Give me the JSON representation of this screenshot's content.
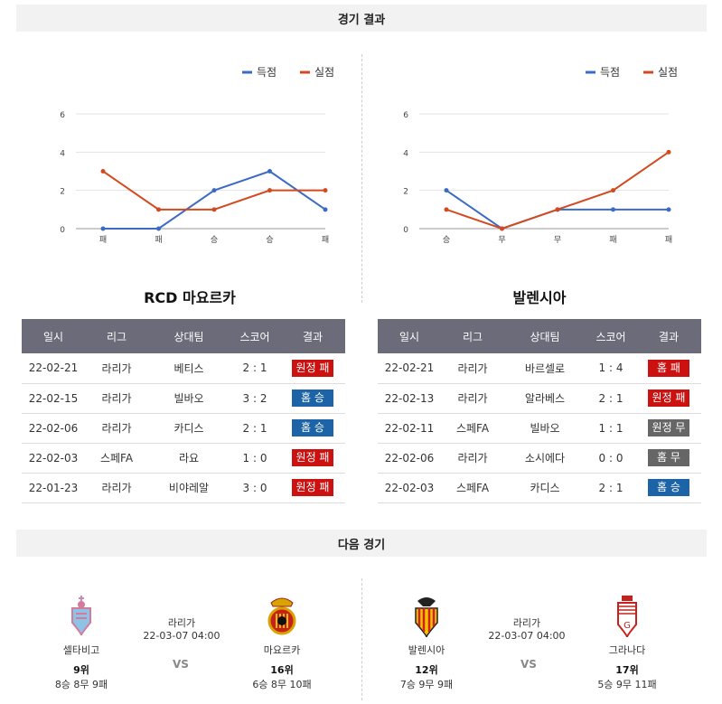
{
  "headers": {
    "results": "경기 결과",
    "next": "다음 경기"
  },
  "colors": {
    "score": "#3d6bc4",
    "concede": "#d44a20",
    "lose": "#cc1111",
    "win": "#1d63a8",
    "draw": "#666666"
  },
  "charts": [
    {
      "legend": [
        "득점",
        "실점"
      ],
      "yticks": [
        "0",
        "2",
        "4",
        "6"
      ],
      "categories": [
        "패",
        "패",
        "승",
        "승",
        "패"
      ]
    },
    {
      "legend": [
        "득점",
        "실점"
      ],
      "yticks": [
        "0",
        "2",
        "4",
        "6"
      ],
      "categories": [
        "승",
        "무",
        "무",
        "패",
        "패"
      ]
    }
  ],
  "chart_data": [
    {
      "type": "line",
      "categories": [
        "패",
        "패",
        "승",
        "승",
        "패"
      ],
      "series": [
        {
          "name": "득점",
          "values": [
            0,
            0,
            2,
            3,
            1
          ]
        },
        {
          "name": "실점",
          "values": [
            3,
            1,
            1,
            2,
            2
          ]
        }
      ],
      "ylim": [
        0,
        6
      ]
    },
    {
      "type": "line",
      "categories": [
        "승",
        "무",
        "무",
        "패",
        "패"
      ],
      "series": [
        {
          "name": "득점",
          "values": [
            2,
            0,
            1,
            1,
            1
          ]
        },
        {
          "name": "실점",
          "values": [
            1,
            0,
            1,
            2,
            4
          ]
        }
      ],
      "ylim": [
        0,
        6
      ]
    }
  ],
  "teams": [
    {
      "title": "RCD 마요르카",
      "columns": [
        "일시",
        "리그",
        "상대팀",
        "스코어",
        "결과"
      ],
      "rows": [
        {
          "date": "22-02-21",
          "league": "라리가",
          "opponent": "베티스",
          "score": "2 : 1",
          "result": "원정 패",
          "type": "lose"
        },
        {
          "date": "22-02-15",
          "league": "라리가",
          "opponent": "빌바오",
          "score": "3 : 2",
          "result": "홈 승",
          "type": "win"
        },
        {
          "date": "22-02-06",
          "league": "라리가",
          "opponent": "카디스",
          "score": "2 : 1",
          "result": "홈 승",
          "type": "win"
        },
        {
          "date": "22-02-03",
          "league": "스페FA",
          "opponent": "라요",
          "score": "1 : 0",
          "result": "원정 패",
          "type": "lose"
        },
        {
          "date": "22-01-23",
          "league": "라리가",
          "opponent": "비야레알",
          "score": "3 : 0",
          "result": "원정 패",
          "type": "lose"
        }
      ]
    },
    {
      "title": "발렌시아",
      "columns": [
        "일시",
        "리그",
        "상대팀",
        "스코어",
        "결과"
      ],
      "rows": [
        {
          "date": "22-02-21",
          "league": "라리가",
          "opponent": "바르셀로",
          "score": "1 : 4",
          "result": "홈 패",
          "type": "lose"
        },
        {
          "date": "22-02-13",
          "league": "라리가",
          "opponent": "알라베스",
          "score": "2 : 1",
          "result": "원정 패",
          "type": "lose"
        },
        {
          "date": "22-02-11",
          "league": "스페FA",
          "opponent": "빌바오",
          "score": "1 : 1",
          "result": "원정 무",
          "type": "draw"
        },
        {
          "date": "22-02-06",
          "league": "라리가",
          "opponent": "소시에다",
          "score": "0 : 0",
          "result": "홈 무",
          "type": "draw"
        },
        {
          "date": "22-02-03",
          "league": "스페FA",
          "opponent": "카디스",
          "score": "2 : 1",
          "result": "홈 승",
          "type": "win"
        }
      ]
    }
  ],
  "next_matches": [
    {
      "home": {
        "name": "셀타비고",
        "rank": "9위",
        "record": "8승 8무 9패",
        "logo": "celta-logo"
      },
      "league": "라리가",
      "datetime": "22-03-07 04:00",
      "vs": "VS",
      "away": {
        "name": "마요르카",
        "rank": "16위",
        "record": "6승 8무 10패",
        "logo": "mallorca-logo"
      }
    },
    {
      "home": {
        "name": "발렌시아",
        "rank": "12위",
        "record": "7승 9무 9패",
        "logo": "valencia-logo"
      },
      "league": "라리가",
      "datetime": "22-03-07 04:00",
      "vs": "VS",
      "away": {
        "name": "그라나다",
        "rank": "17위",
        "record": "5승 9무 11패",
        "logo": "granada-logo"
      }
    }
  ]
}
